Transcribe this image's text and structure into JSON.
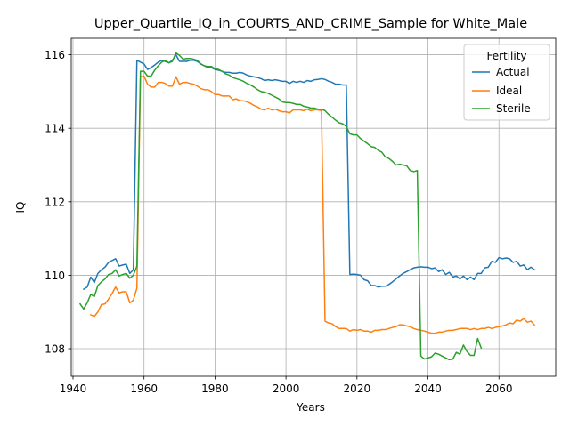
{
  "chart_data": {
    "type": "line",
    "title": "Upper_Quartile_IQ_in_COURTS_AND_CRIME_Sample for White_Male",
    "xlabel": "Years",
    "ylabel": "IQ",
    "xlim": [
      1939.5,
      2076
    ],
    "ylim": [
      107.25,
      116.45
    ],
    "xticks": [
      1940,
      1960,
      1980,
      2000,
      2020,
      2040,
      2060
    ],
    "yticks": [
      108,
      110,
      112,
      114,
      116
    ],
    "grid": true,
    "legend": {
      "title": "Fertility",
      "position": "top-right"
    },
    "series": [
      {
        "name": "Actual",
        "color": "#1f77b4",
        "x": [
          1943,
          1944,
          1945,
          1946,
          1947,
          1948,
          1949,
          1950,
          1951,
          1952,
          1953,
          1954,
          1955,
          1956,
          1957,
          1958,
          1959,
          1960,
          1961,
          1962,
          1963,
          1964,
          1965,
          1966,
          1967,
          1968,
          1969,
          1970,
          1971,
          1972,
          1973,
          1974,
          1975,
          1976,
          1977,
          1978,
          1979,
          1980,
          1981,
          1982,
          1983,
          1984,
          1985,
          1986,
          1987,
          1988,
          1989,
          1990,
          1991,
          1992,
          1993,
          1994,
          1995,
          1996,
          1997,
          1998,
          1999,
          2000,
          2001,
          2002,
          2003,
          2004,
          2005,
          2006,
          2007,
          2008,
          2009,
          2010,
          2011,
          2012,
          2013,
          2014,
          2015,
          2016,
          2017,
          2018,
          2019,
          2020,
          2021,
          2022,
          2023,
          2024,
          2025,
          2026,
          2027,
          2028,
          2029,
          2030,
          2031,
          2032,
          2033,
          2034,
          2035,
          2036,
          2037,
          2038,
          2039,
          2040,
          2041,
          2042,
          2043,
          2044,
          2045,
          2046,
          2047,
          2048,
          2049,
          2050,
          2051,
          2052,
          2053,
          2054,
          2055,
          2056,
          2057,
          2058,
          2059,
          2060,
          2061,
          2062,
          2063,
          2064,
          2065,
          2066,
          2067,
          2068,
          2069,
          2070
        ],
        "y": [
          109.62,
          109.68,
          109.95,
          109.8,
          110.05,
          110.15,
          110.22,
          110.35,
          110.4,
          110.45,
          110.25,
          110.28,
          110.3,
          110.05,
          110.15,
          115.85,
          115.8,
          115.75,
          115.6,
          115.65,
          115.72,
          115.8,
          115.85,
          115.82,
          115.78,
          115.85,
          116.0,
          115.82,
          115.82,
          115.82,
          115.85,
          115.85,
          115.82,
          115.75,
          115.7,
          115.65,
          115.65,
          115.6,
          115.58,
          115.55,
          115.52,
          115.52,
          115.5,
          115.5,
          115.52,
          115.5,
          115.45,
          115.42,
          115.4,
          115.38,
          115.35,
          115.3,
          115.32,
          115.3,
          115.32,
          115.3,
          115.28,
          115.28,
          115.22,
          115.28,
          115.25,
          115.28,
          115.25,
          115.3,
          115.28,
          115.32,
          115.33,
          115.35,
          115.33,
          115.28,
          115.25,
          115.2,
          115.2,
          115.18,
          115.18,
          110.02,
          110.03,
          110.02,
          110.0,
          109.88,
          109.85,
          109.72,
          109.72,
          109.68,
          109.7,
          109.7,
          109.75,
          109.82,
          109.9,
          109.98,
          110.05,
          110.1,
          110.15,
          110.2,
          110.22,
          110.23,
          110.22,
          110.22,
          110.18,
          110.2,
          110.1,
          110.15,
          110.02,
          110.08,
          109.95,
          109.98,
          109.9,
          109.98,
          109.88,
          109.95,
          109.88,
          110.05,
          110.05,
          110.2,
          110.22,
          110.38,
          110.35,
          110.48,
          110.45,
          110.47,
          110.45,
          110.35,
          110.38,
          110.25,
          110.28,
          110.15,
          110.22,
          110.15
        ]
      },
      {
        "name": "Ideal",
        "color": "#ff7f0e",
        "x": [
          1945,
          1946,
          1947,
          1948,
          1949,
          1950,
          1951,
          1952,
          1953,
          1954,
          1955,
          1956,
          1957,
          1958,
          1959,
          1960,
          1961,
          1962,
          1963,
          1964,
          1965,
          1966,
          1967,
          1968,
          1969,
          1970,
          1971,
          1972,
          1973,
          1974,
          1975,
          1976,
          1977,
          1978,
          1979,
          1980,
          1981,
          1982,
          1983,
          1984,
          1985,
          1986,
          1987,
          1988,
          1989,
          1990,
          1991,
          1992,
          1993,
          1994,
          1995,
          1996,
          1997,
          1998,
          1999,
          2000,
          2001,
          2002,
          2003,
          2004,
          2005,
          2006,
          2007,
          2008,
          2009,
          2010,
          2011,
          2012,
          2013,
          2014,
          2015,
          2016,
          2017,
          2018,
          2019,
          2020,
          2021,
          2022,
          2023,
          2024,
          2025,
          2026,
          2027,
          2028,
          2029,
          2030,
          2031,
          2032,
          2033,
          2034,
          2035,
          2036,
          2037,
          2038,
          2039,
          2040,
          2041,
          2042,
          2043,
          2044,
          2045,
          2046,
          2047,
          2048,
          2049,
          2050,
          2051,
          2052,
          2053,
          2054,
          2055,
          2056,
          2057,
          2058,
          2059,
          2060,
          2061,
          2062,
          2063,
          2064,
          2065,
          2066,
          2067,
          2068,
          2069,
          2070
        ],
        "y": [
          108.92,
          108.88,
          109.0,
          109.2,
          109.22,
          109.35,
          109.5,
          109.68,
          109.52,
          109.55,
          109.55,
          109.25,
          109.32,
          109.65,
          115.4,
          115.42,
          115.2,
          115.12,
          115.12,
          115.25,
          115.25,
          115.22,
          115.15,
          115.15,
          115.4,
          115.2,
          115.25,
          115.25,
          115.22,
          115.2,
          115.15,
          115.08,
          115.05,
          115.05,
          115.0,
          114.92,
          114.92,
          114.88,
          114.88,
          114.88,
          114.78,
          114.8,
          114.75,
          114.75,
          114.72,
          114.68,
          114.62,
          114.58,
          114.52,
          114.5,
          114.55,
          114.5,
          114.52,
          114.48,
          114.45,
          114.45,
          114.42,
          114.5,
          114.5,
          114.5,
          114.48,
          114.52,
          114.48,
          114.5,
          114.5,
          114.48,
          108.75,
          108.7,
          108.68,
          108.6,
          108.55,
          108.55,
          108.55,
          108.48,
          108.52,
          108.5,
          108.52,
          108.48,
          108.48,
          108.45,
          108.5,
          108.5,
          108.52,
          108.52,
          108.55,
          108.58,
          108.6,
          108.65,
          108.65,
          108.62,
          108.6,
          108.55,
          108.52,
          108.5,
          108.48,
          108.45,
          108.42,
          108.42,
          108.45,
          108.45,
          108.48,
          108.5,
          108.5,
          108.52,
          108.55,
          108.55,
          108.55,
          108.52,
          108.55,
          108.52,
          108.55,
          108.55,
          108.58,
          108.55,
          108.58,
          108.6,
          108.62,
          108.65,
          108.7,
          108.68,
          108.78,
          108.75,
          108.82,
          108.72,
          108.75,
          108.65
        ]
      },
      {
        "name": "Sterile",
        "color": "#2ca02c",
        "x": [
          1942,
          1943,
          1944,
          1945,
          1946,
          1947,
          1948,
          1949,
          1950,
          1951,
          1952,
          1953,
          1954,
          1955,
          1956,
          1957,
          1958,
          1959,
          1960,
          1961,
          1962,
          1963,
          1964,
          1965,
          1966,
          1967,
          1968,
          1969,
          1970,
          1971,
          1972,
          1973,
          1974,
          1975,
          1976,
          1977,
          1978,
          1979,
          1980,
          1981,
          1982,
          1983,
          1984,
          1985,
          1986,
          1987,
          1988,
          1989,
          1990,
          1991,
          1992,
          1993,
          1994,
          1995,
          1996,
          1997,
          1998,
          1999,
          2000,
          2001,
          2002,
          2003,
          2004,
          2005,
          2006,
          2007,
          2008,
          2009,
          2010,
          2011,
          2012,
          2013,
          2014,
          2015,
          2016,
          2017,
          2018,
          2019,
          2020,
          2021,
          2022,
          2023,
          2024,
          2025,
          2026,
          2027,
          2028,
          2029,
          2030,
          2031,
          2032,
          2033,
          2034,
          2035,
          2036,
          2037,
          2038,
          2039,
          2040,
          2041,
          2042,
          2043,
          2044,
          2045,
          2046,
          2047,
          2048,
          2049,
          2050,
          2051,
          2052,
          2053,
          2054,
          2055
        ],
        "y": [
          109.22,
          109.08,
          109.25,
          109.48,
          109.42,
          109.72,
          109.82,
          109.9,
          110.02,
          110.05,
          110.15,
          109.98,
          110.02,
          110.05,
          109.92,
          110.0,
          110.25,
          115.55,
          115.55,
          115.42,
          115.42,
          115.58,
          115.7,
          115.8,
          115.85,
          115.78,
          115.82,
          116.05,
          115.98,
          115.88,
          115.9,
          115.9,
          115.88,
          115.85,
          115.75,
          115.7,
          115.68,
          115.68,
          115.62,
          115.6,
          115.55,
          115.48,
          115.45,
          115.38,
          115.35,
          115.32,
          115.28,
          115.22,
          115.18,
          115.12,
          115.05,
          115.0,
          114.98,
          114.95,
          114.9,
          114.85,
          114.8,
          114.72,
          114.7,
          114.7,
          114.68,
          114.65,
          114.65,
          114.6,
          114.58,
          114.55,
          114.55,
          114.52,
          114.52,
          114.48,
          114.38,
          114.3,
          114.22,
          114.15,
          114.12,
          114.05,
          113.85,
          113.82,
          113.82,
          113.72,
          113.65,
          113.58,
          113.5,
          113.48,
          113.4,
          113.35,
          113.22,
          113.18,
          113.1,
          113.0,
          113.02,
          113.0,
          112.98,
          112.85,
          112.82,
          112.85,
          107.8,
          107.72,
          107.75,
          107.78,
          107.88,
          107.85,
          107.8,
          107.75,
          107.7,
          107.72,
          107.9,
          107.85,
          108.1,
          107.92,
          107.82,
          107.82,
          108.28,
          108.02
        ]
      }
    ]
  }
}
